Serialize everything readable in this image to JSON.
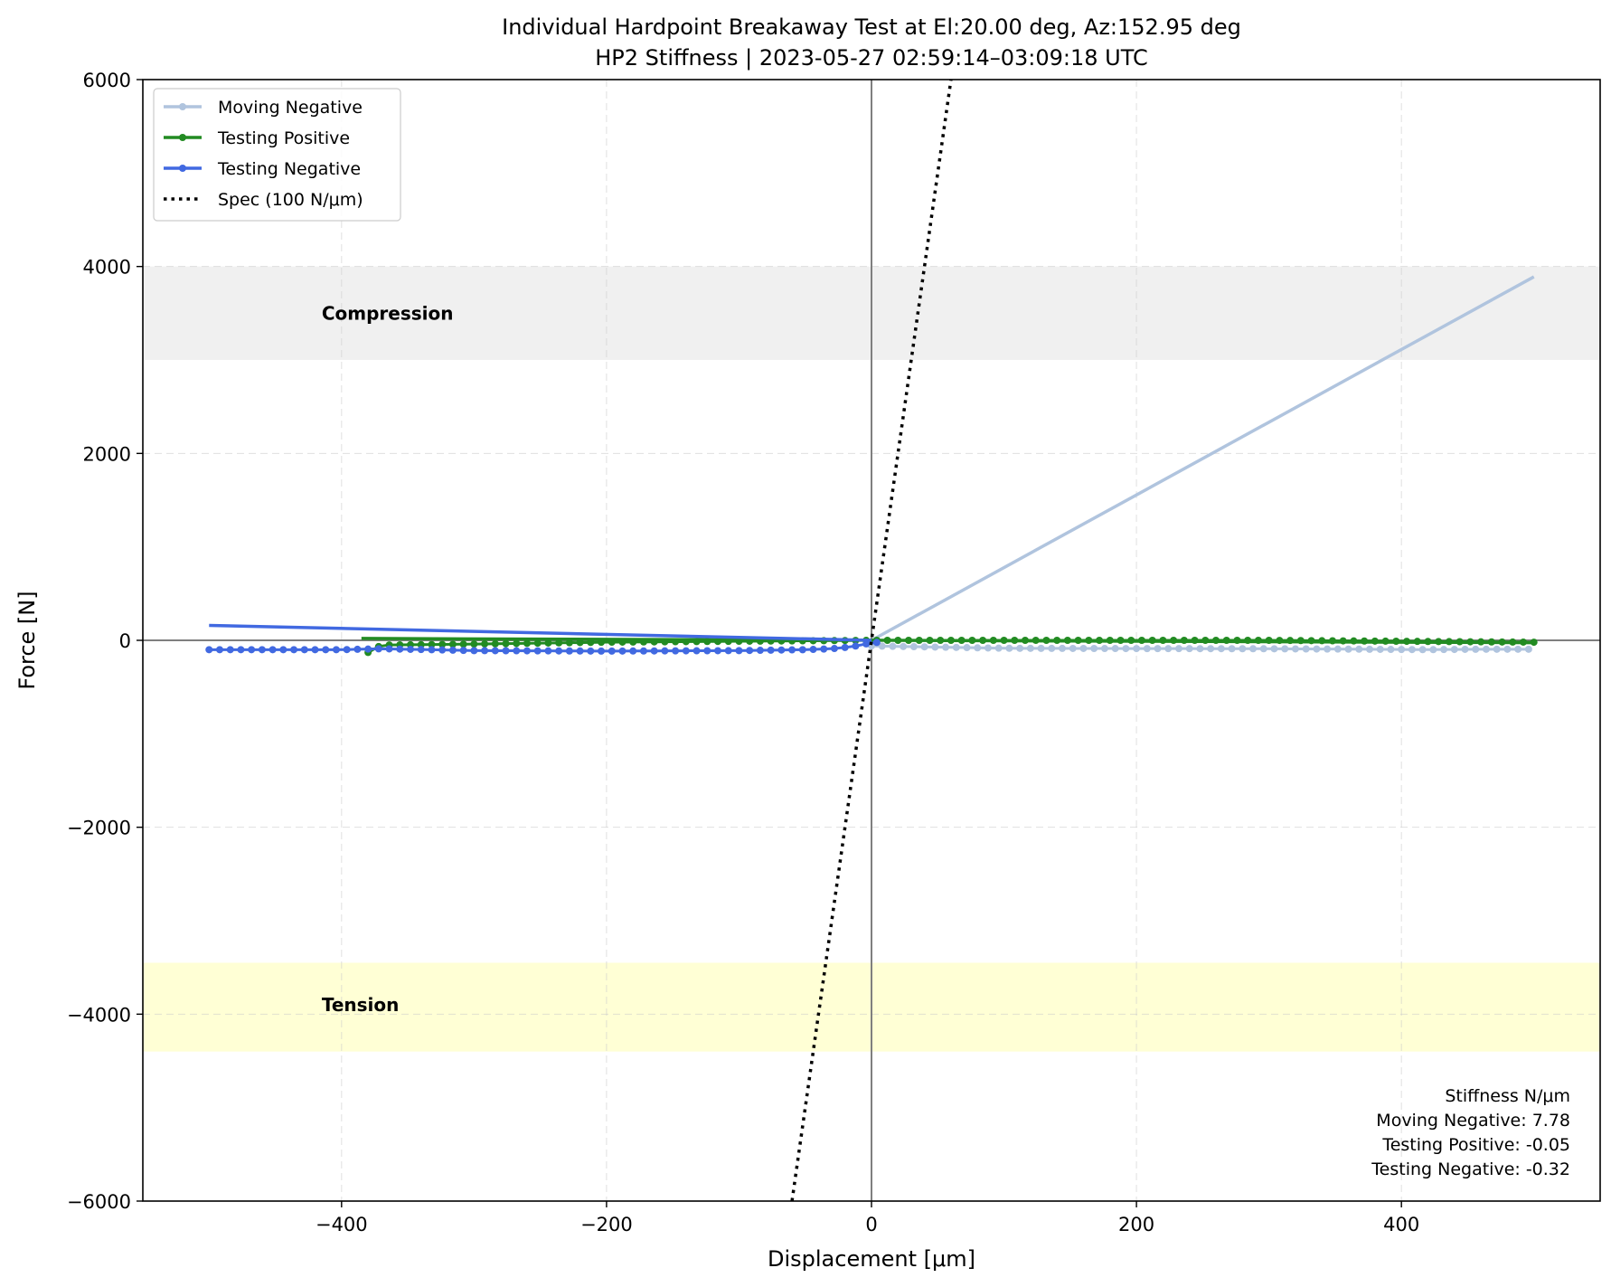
{
  "chart_data": {
    "type": "scatter",
    "title": "Individual Hardpoint Breakaway Test at El:20.00 deg, Az:152.95 deg",
    "subtitle": "HP2 Stiffness | 2023-05-27 02:59:14–03:09:18 UTC",
    "xlabel": "Displacement [μm]",
    "ylabel": "Force [N]",
    "xlim": [
      -550,
      550
    ],
    "ylim": [
      -6000,
      6000
    ],
    "xticks": [
      -400,
      -200,
      0,
      200,
      400
    ],
    "yticks": [
      -6000,
      -4000,
      -2000,
      0,
      2000,
      4000,
      6000
    ],
    "xtick_labels": [
      "−400",
      "−200",
      "0",
      "200",
      "400"
    ],
    "ytick_labels": [
      "−6000",
      "−4000",
      "−2000",
      "0",
      "2000",
      "4000",
      "6000"
    ],
    "grid": true,
    "legend_position": "top-left",
    "bands": [
      {
        "label": "Compression",
        "y0": 3000,
        "y1": 4000,
        "color": "#f0f0f0"
      },
      {
        "label": "Tension",
        "y0": -4400,
        "y1": -3450,
        "color": "#ffffd5"
      }
    ],
    "series": [
      {
        "name": "Moving Negative",
        "color": "#b0c4de",
        "x_range": [
          0,
          500
        ],
        "y_points": [
          [
            0,
            -60
          ],
          [
            100,
            -85
          ],
          [
            200,
            -88
          ],
          [
            300,
            -90
          ],
          [
            370,
            -95
          ],
          [
            420,
            -100
          ],
          [
            460,
            -95
          ],
          [
            500,
            -95
          ]
        ],
        "fit": {
          "x": [
            0,
            500
          ],
          "y": [
            0,
            3890
          ]
        }
      },
      {
        "name": "Testing Positive",
        "color": "#228b22",
        "x_range": [
          -380,
          500
        ],
        "y_points": [
          [
            -380,
            -130
          ],
          [
            -370,
            -50
          ],
          [
            -300,
            -40
          ],
          [
            -200,
            -20
          ],
          [
            -100,
            -10
          ],
          [
            0,
            0
          ],
          [
            100,
            0
          ],
          [
            200,
            0
          ],
          [
            300,
            0
          ],
          [
            400,
            -10
          ],
          [
            500,
            -20
          ]
        ],
        "fit": {
          "x": [
            -385,
            500
          ],
          "y": [
            20,
            -25
          ]
        }
      },
      {
        "name": "Testing Negative",
        "color": "#4169e1",
        "x_range": [
          -500,
          10
        ],
        "y_points": [
          [
            -500,
            -100
          ],
          [
            -400,
            -100
          ],
          [
            -370,
            -90
          ],
          [
            -300,
            -110
          ],
          [
            -200,
            -115
          ],
          [
            -100,
            -110
          ],
          [
            -50,
            -100
          ],
          [
            -30,
            -90
          ],
          [
            -15,
            -70
          ],
          [
            -5,
            -40
          ],
          [
            5,
            -20
          ],
          [
            10,
            -10
          ]
        ],
        "fit": {
          "x": [
            -500,
            0
          ],
          "y": [
            160,
            0
          ]
        }
      },
      {
        "name": "Spec (100 N/μm)",
        "color": "#000000",
        "style": "dotted",
        "x": [
          -60,
          60
        ],
        "y": [
          -6000,
          6000
        ]
      }
    ],
    "stats_box": {
      "header": "Stiffness N/μm",
      "lines": [
        "Moving Negative:  7.78",
        "Testing Positive: -0.05",
        "Testing Negative: -0.32"
      ],
      "position": "bottom-right"
    }
  }
}
